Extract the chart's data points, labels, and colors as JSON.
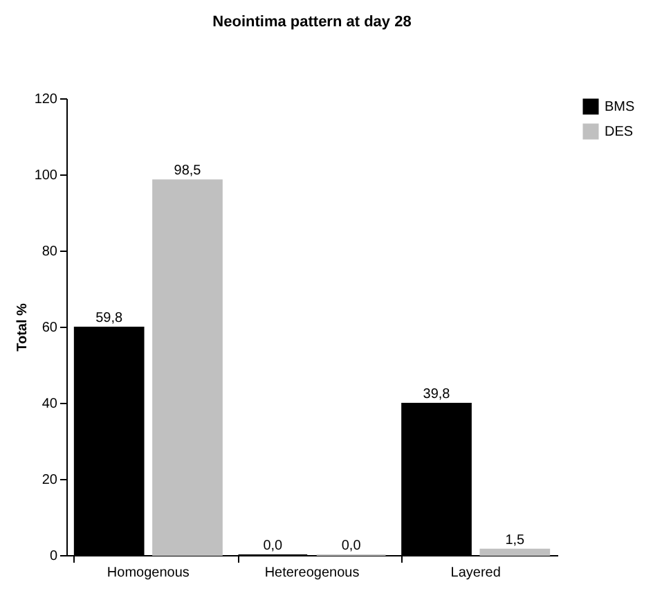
{
  "chart_data": {
    "type": "bar",
    "title": "Neointima pattern at day 28",
    "ylabel": "Total %",
    "categories": [
      "Homogenous",
      "Hetereogenous",
      "Layered"
    ],
    "series": [
      {
        "name": "BMS",
        "color": "#000000",
        "values": [
          59.8,
          0,
          39.8
        ],
        "value_labels": [
          "59,8",
          "0,0",
          "39,8"
        ]
      },
      {
        "name": "DES",
        "color": "#c0c0c0",
        "values": [
          98.5,
          0,
          1.5
        ],
        "value_labels": [
          "98,5",
          "0,0",
          "1,5"
        ]
      }
    ],
    "ylim": [
      0,
      120
    ],
    "yticks": [
      0,
      20,
      40,
      60,
      80,
      100,
      120
    ],
    "grid": false,
    "legend": "right"
  }
}
